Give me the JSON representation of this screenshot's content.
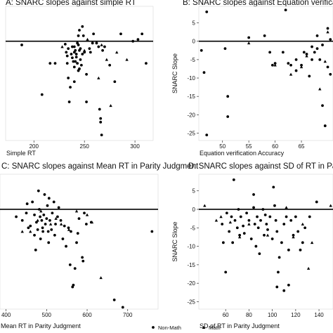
{
  "legend": [
    {
      "name": "Non-Math",
      "marker": "circle"
    },
    {
      "name": "Math",
      "marker": "triangle"
    }
  ],
  "chart_data": [
    {
      "type": "scatter",
      "title": "A: SNARC slopes against simple RT",
      "xlabel": "Simple RT",
      "ylabel": "",
      "xlim": [
        172,
        318
      ],
      "ylim": [
        -27,
        9.5
      ],
      "xticks": [
        200,
        250,
        300
      ],
      "yticks": [],
      "reference_line_y": 0,
      "grid": false,
      "series": [
        {
          "marker": "circle",
          "points": [
            [
              188,
              -1
            ],
            [
              208,
              -14.5
            ],
            [
              216,
              -6
            ],
            [
              221,
              -6
            ],
            [
              231,
              -0.8
            ],
            [
              232,
              -3
            ],
            [
              233,
              -4
            ],
            [
              233,
              -6
            ],
            [
              234,
              -2
            ],
            [
              234,
              -10
            ],
            [
              235,
              -16.5
            ],
            [
              236,
              -12.5
            ],
            [
              237,
              -3.5
            ],
            [
              238,
              -1.5
            ],
            [
              238,
              -4.5
            ],
            [
              239,
              -5.5
            ],
            [
              240,
              -1.5
            ],
            [
              240,
              -3
            ],
            [
              240,
              -7
            ],
            [
              240,
              -11
            ],
            [
              241,
              -2.5
            ],
            [
              241,
              -5.5
            ],
            [
              242,
              -3.5
            ],
            [
              242,
              -4.3
            ],
            [
              243,
              -6
            ],
            [
              243,
              -0.5
            ],
            [
              244,
              1.5
            ],
            [
              244,
              -1
            ],
            [
              244,
              -8
            ],
            [
              245,
              3
            ],
            [
              245,
              -2.5
            ],
            [
              245,
              -7.5
            ],
            [
              246,
              -2
            ],
            [
              246,
              -5
            ],
            [
              247,
              -6.5
            ],
            [
              248,
              4
            ],
            [
              248,
              -3.5
            ],
            [
              249,
              1.5
            ],
            [
              250,
              -3
            ],
            [
              252,
              -9
            ],
            [
              252,
              -16.5
            ],
            [
              255,
              -2
            ],
            [
              256,
              -3
            ],
            [
              258,
              -0.5
            ],
            [
              259,
              2
            ],
            [
              262,
              -0.5
            ],
            [
              264,
              -1.5
            ],
            [
              265,
              -18.5
            ],
            [
              266,
              -21
            ],
            [
              266,
              -22
            ],
            [
              267,
              -25.5
            ],
            [
              268,
              -2.5
            ],
            [
              270,
              -1.5
            ],
            [
              275,
              -6.5
            ],
            [
              280,
              -11
            ],
            [
              286,
              2
            ],
            [
              298,
              0
            ],
            [
              303,
              0.5
            ],
            [
              307,
              2
            ],
            [
              311,
              -6
            ]
          ]
        },
        {
          "marker": "triangle",
          "points": [
            [
              228,
              -1.5
            ],
            [
              250,
              -2.5
            ],
            [
              253,
              0.5
            ],
            [
              264,
              -10
            ],
            [
              267,
              -1
            ],
            [
              272,
              -5
            ],
            [
              276,
              -17.5
            ],
            [
              282,
              -3
            ],
            [
              292,
              -5
            ]
          ]
        }
      ]
    },
    {
      "type": "scatter",
      "title": "B: SNARC slopes against Equation verification",
      "xlabel": "Equation verification Accuracy",
      "ylabel": "SNARC Slope",
      "xlim": [
        45.5,
        71
      ],
      "ylim": [
        -27,
        9.5
      ],
      "xticks": [
        50,
        55,
        60,
        65
      ],
      "yticks": [
        -25,
        -20,
        -15,
        -10,
        -5,
        0,
        5
      ],
      "reference_line_y": 0,
      "grid": false,
      "series": [
        {
          "marker": "circle",
          "points": [
            [
              46,
              -2.5
            ],
            [
              46.5,
              -8.5
            ],
            [
              47,
              8
            ],
            [
              47,
              -25.5
            ],
            [
              50.5,
              -2
            ],
            [
              51,
              -15
            ],
            [
              51,
              -20.5
            ],
            [
              55,
              1
            ],
            [
              58,
              1.5
            ],
            [
              59,
              -3
            ],
            [
              59.5,
              -6.5
            ],
            [
              60,
              -6
            ],
            [
              61.5,
              -3
            ],
            [
              62,
              8.5
            ],
            [
              62.5,
              -6
            ],
            [
              63,
              -6.5
            ],
            [
              64,
              -5
            ],
            [
              64,
              -8
            ],
            [
              65,
              -6.5
            ],
            [
              65.5,
              -3
            ],
            [
              66,
              -3.5
            ],
            [
              66.5,
              -9.5
            ],
            [
              67,
              -5
            ],
            [
              67,
              -1.5
            ],
            [
              67.5,
              -3
            ],
            [
              68,
              1.5
            ],
            [
              68,
              -2
            ],
            [
              68.5,
              -5
            ],
            [
              69,
              -1
            ],
            [
              69,
              -17.5
            ],
            [
              69.5,
              -23
            ],
            [
              70,
              -7
            ],
            [
              70,
              3.5
            ],
            [
              70.5,
              -9
            ],
            [
              70.5,
              0.5
            ]
          ]
        },
        {
          "marker": "triangle",
          "points": [
            [
              55,
              -0.5
            ],
            [
              60,
              -6.5
            ],
            [
              63,
              -9
            ],
            [
              65,
              -7
            ],
            [
              66,
              -4
            ],
            [
              68.5,
              -13
            ],
            [
              69.5,
              -5.5
            ],
            [
              70,
              2.5
            ]
          ]
        }
      ]
    },
    {
      "type": "scatter",
      "title": "C: SNARC slopes against Mean RT in Parity Judgment",
      "xlabel": "Mean RT in Parity Judgment",
      "ylabel": "",
      "xlim": [
        385,
        775
      ],
      "ylim": [
        -27,
        9.5
      ],
      "xticks": [
        400,
        500,
        600,
        700
      ],
      "yticks": [],
      "reference_line_y": 0,
      "grid": false,
      "series": [
        {
          "marker": "circle",
          "points": [
            [
              425,
              -2
            ],
            [
              440,
              -3
            ],
            [
              450,
              -1
            ],
            [
              452,
              1.5
            ],
            [
              455,
              -5
            ],
            [
              460,
              -4.5
            ],
            [
              465,
              2
            ],
            [
              470,
              -1.5
            ],
            [
              470,
              -7
            ],
            [
              473,
              -11
            ],
            [
              475,
              -3.5
            ],
            [
              478,
              -5.5
            ],
            [
              480,
              5
            ],
            [
              482,
              0
            ],
            [
              484,
              -2
            ],
            [
              485,
              -8
            ],
            [
              488,
              -3
            ],
            [
              490,
              -5
            ],
            [
              491,
              -6
            ],
            [
              493,
              -1.5
            ],
            [
              495,
              4
            ],
            [
              497,
              -4
            ],
            [
              500,
              -2.5
            ],
            [
              502,
              1
            ],
            [
              504,
              -6
            ],
            [
              505,
              -9
            ],
            [
              506,
              3
            ],
            [
              508,
              -3
            ],
            [
              512,
              -5.5
            ],
            [
              514,
              -1
            ],
            [
              518,
              2
            ],
            [
              520,
              -7
            ],
            [
              522,
              -4
            ],
            [
              527,
              -2
            ],
            [
              530,
              0.5
            ],
            [
              535,
              -3
            ],
            [
              540,
              -8
            ],
            [
              544,
              -4.5
            ],
            [
              548,
              -10
            ],
            [
              554,
              -5
            ],
            [
              558,
              -15
            ],
            [
              560,
              -6
            ],
            [
              564,
              -21
            ],
            [
              566,
              -20.5
            ],
            [
              570,
              -16
            ],
            [
              574,
              -9
            ],
            [
              577,
              -6.5
            ],
            [
              580,
              -2.5
            ],
            [
              588,
              -13
            ],
            [
              590,
              -14
            ],
            [
              593,
              -1
            ],
            [
              598,
              -4
            ],
            [
              610,
              -3.5
            ],
            [
              667,
              -24.5
            ],
            [
              688,
              -26.5
            ],
            [
              760,
              -6
            ]
          ]
        },
        {
          "marker": "triangle",
          "points": [
            [
              440,
              -6
            ],
            [
              460,
              -6
            ],
            [
              478,
              -3
            ],
            [
              486,
              -0.5
            ],
            [
              510,
              -4
            ],
            [
              523,
              -2.5
            ],
            [
              536,
              -4
            ],
            [
              555,
              -5.5
            ],
            [
              574,
              -0.5
            ],
            [
              600,
              -1.5
            ],
            [
              634,
              -18.5
            ],
            [
              612,
              -3.5
            ]
          ]
        }
      ]
    },
    {
      "type": "scatter",
      "title": "D: SNARC slopes against SD of RT in Parity Judgment",
      "xlabel": "SD of RT in Parity Judgment",
      "ylabel": "SNARC Slope",
      "xlim": [
        37,
        152
      ],
      "ylim": [
        -27,
        9.5
      ],
      "xticks": [
        60,
        80,
        100,
        120,
        140
      ],
      "yticks": [
        -25,
        -20,
        -15,
        -10,
        -5,
        0,
        5
      ],
      "reference_line_y": 0,
      "grid": false,
      "series": [
        {
          "marker": "circle",
          "points": [
            [
              57,
              -4
            ],
            [
              58,
              -9
            ],
            [
              61,
              -1
            ],
            [
              63,
              -6
            ],
            [
              65,
              -2
            ],
            [
              66,
              -9
            ],
            [
              68,
              -3
            ],
            [
              70,
              -5
            ],
            [
              71,
              0
            ],
            [
              72,
              -7
            ],
            [
              73,
              -2
            ],
            [
              75,
              -4.5
            ],
            [
              76,
              -6.5
            ],
            [
              78,
              -1
            ],
            [
              80,
              -3
            ],
            [
              82,
              -8
            ],
            [
              84,
              0.5
            ],
            [
              85,
              -4
            ],
            [
              86,
              -10
            ],
            [
              87,
              -2
            ],
            [
              88,
              -5
            ],
            [
              89,
              -12
            ],
            [
              90,
              -3
            ],
            [
              92,
              0
            ],
            [
              93,
              -7
            ],
            [
              94,
              -1.5
            ],
            [
              95,
              -4
            ],
            [
              96,
              -5.5
            ],
            [
              98,
              -2
            ],
            [
              100,
              -8
            ],
            [
              101,
              6
            ],
            [
              102,
              1
            ],
            [
              103,
              -3
            ],
            [
              104,
              -6
            ],
            [
              105,
              -17
            ],
            [
              106,
              -13
            ],
            [
              108,
              -9
            ],
            [
              110,
              -4
            ],
            [
              112,
              -2
            ],
            [
              114,
              -11
            ],
            [
              116,
              -3
            ],
            [
              118,
              -7
            ],
            [
              120,
              -2
            ],
            [
              122,
              -6
            ],
            [
              124,
              -11
            ],
            [
              126,
              -9
            ],
            [
              128,
              -5
            ],
            [
              132,
              -2
            ],
            [
              138,
              2
            ],
            [
              60,
              -17
            ],
            [
              67,
              8
            ],
            [
              84,
              4
            ],
            [
              104,
              -21
            ],
            [
              110,
              -22
            ],
            [
              114,
              -20.5
            ]
          ]
        },
        {
          "marker": "triangle",
          "points": [
            [
              42,
              1
            ],
            [
              52,
              -3
            ],
            [
              56,
              -2
            ],
            [
              64,
              -3.5
            ],
            [
              72,
              -7.5
            ],
            [
              80,
              -4
            ],
            [
              96,
              -7
            ],
            [
              112,
              0.5
            ],
            [
              118,
              -7.5
            ],
            [
              126,
              -4
            ],
            [
              131,
              -16
            ],
            [
              134,
              -9
            ],
            [
              150,
              1
            ]
          ]
        }
      ]
    }
  ]
}
